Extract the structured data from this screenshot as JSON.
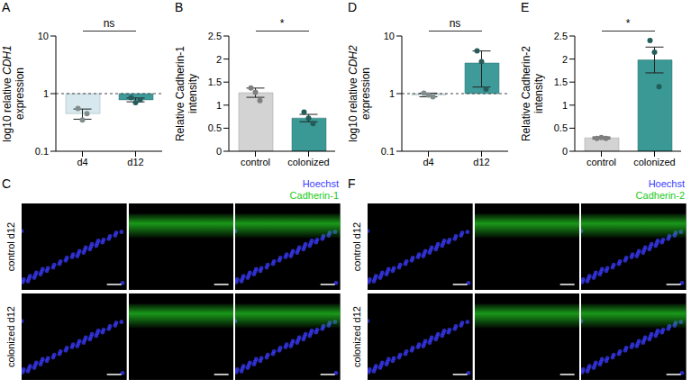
{
  "chart_data": [
    {
      "panel": "A",
      "type": "bar",
      "ylabel": "log10 relative CDH1 expression",
      "log": "y",
      "categories": [
        "d4",
        "d12"
      ],
      "values": [
        0.45,
        0.78
      ],
      "error": [
        0.09,
        0.06
      ],
      "points": [
        [
          0.55,
          0.35,
          0.45
        ],
        [
          0.85,
          0.7,
          0.78
        ]
      ],
      "colors": [
        "#d7e9ee",
        "#3f9a9a"
      ],
      "ylim": [
        0.1,
        10
      ],
      "yticks": [
        0.1,
        1,
        10
      ],
      "reference_line": 1,
      "annotation": "ns"
    },
    {
      "panel": "B",
      "type": "bar",
      "ylabel": "Relative Cadherin-1 intensity",
      "categories": [
        "control",
        "colonized"
      ],
      "values": [
        1.27,
        0.72
      ],
      "error": [
        0.1,
        0.08
      ],
      "points": [
        [
          1.37,
          1.28,
          1.1
        ],
        [
          0.85,
          0.72,
          0.6
        ]
      ],
      "colors": [
        "#d3d3d3",
        "#3a9994"
      ],
      "ylim": [
        0,
        2.5
      ],
      "yticks": [
        0,
        0.5,
        1,
        1.5,
        2,
        2.5
      ],
      "annotation": "*"
    },
    {
      "panel": "D",
      "type": "bar",
      "ylabel": "log10 relative CDH2 expression",
      "log": "y",
      "categories": [
        "d4",
        "d12"
      ],
      "values": [
        0.95,
        3.4
      ],
      "error": [
        0.07,
        2.1
      ],
      "points": [
        [
          1.02,
          0.95,
          0.88
        ],
        [
          5.5,
          3.6,
          1.2
        ]
      ],
      "colors": [
        "#d7e9ee",
        "#3f9a9a"
      ],
      "ylim": [
        0.1,
        10
      ],
      "yticks": [
        0.1,
        1,
        10
      ],
      "reference_line": 1,
      "annotation": "ns"
    },
    {
      "panel": "E",
      "type": "bar",
      "ylabel": "Relative Cadherin-2 intensity",
      "categories": [
        "control",
        "colonized"
      ],
      "values": [
        0.29,
        1.98
      ],
      "error": [
        0.02,
        0.28
      ],
      "points": [
        [
          0.28,
          0.3,
          0.28
        ],
        [
          2.4,
          2.15,
          1.4
        ]
      ],
      "colors": [
        "#d3d3d3",
        "#3a9994"
      ],
      "ylim": [
        0,
        2.5
      ],
      "yticks": [
        0,
        0.5,
        1,
        1.5,
        2,
        2.5
      ],
      "annotation": "*"
    }
  ],
  "images": [
    {
      "panel": "C",
      "channels": [
        "Hoechst",
        "Cadherin-1"
      ],
      "colors": [
        "#3b3bff",
        "#22cc22"
      ],
      "rows": [
        "control d12",
        "colonized d12"
      ]
    },
    {
      "panel": "F",
      "channels": [
        "Hoechst",
        "Cadherin-2"
      ],
      "colors": [
        "#3b3bff",
        "#22cc22"
      ],
      "rows": [
        "control d12",
        "colonized d12"
      ]
    }
  ]
}
